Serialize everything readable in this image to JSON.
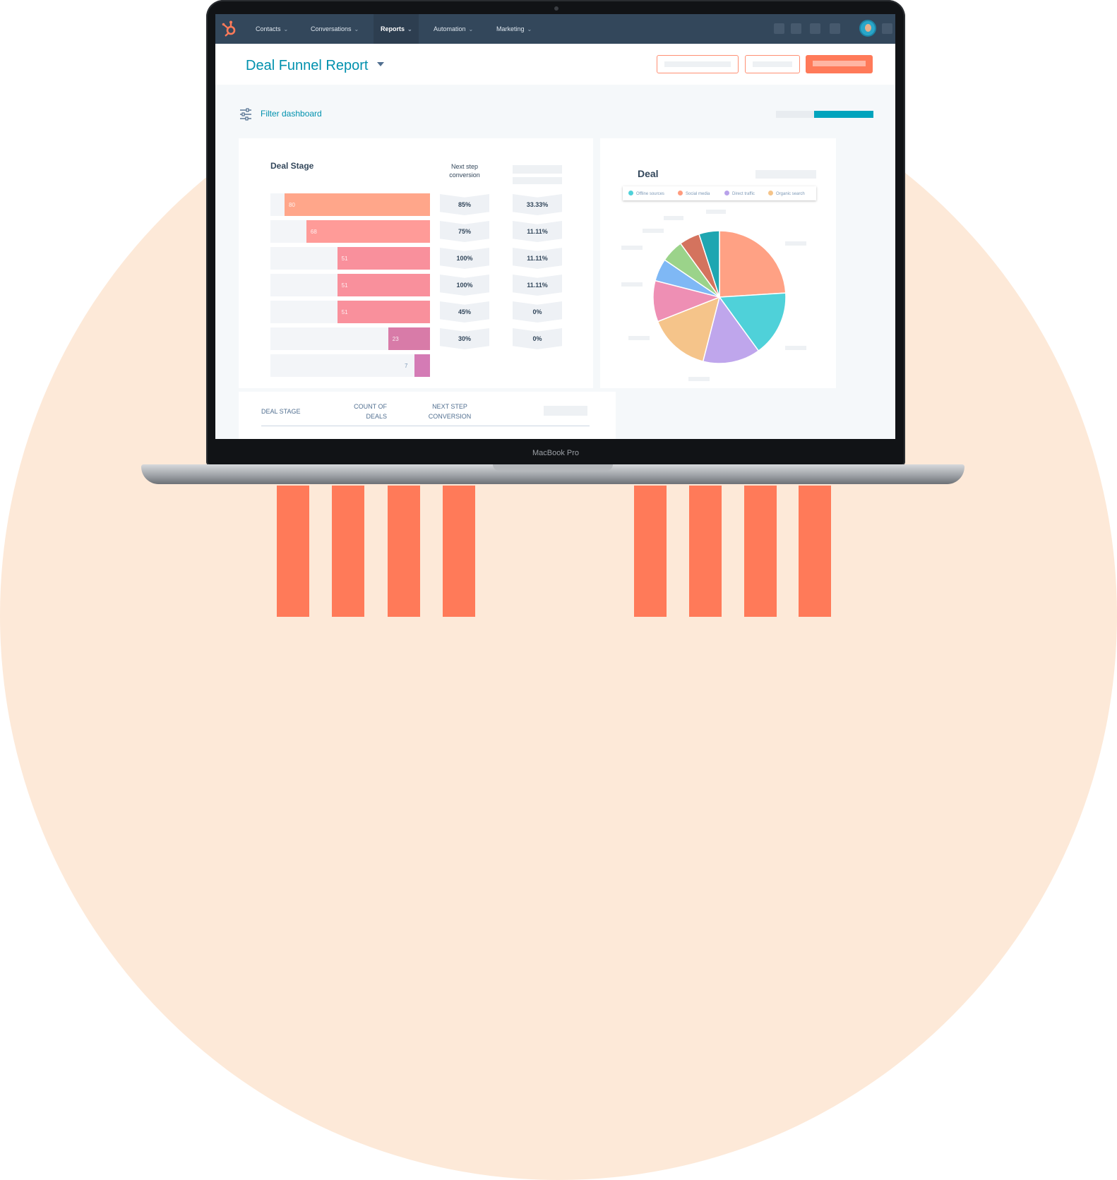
{
  "app": {
    "nav": [
      {
        "label": "Contacts",
        "active": false
      },
      {
        "label": "Conversations",
        "active": false
      },
      {
        "label": "Reports",
        "active": true
      },
      {
        "label": "Automation",
        "active": false
      },
      {
        "label": "Marketing",
        "active": false
      }
    ],
    "logo_icon": "hubspot-sprocket-icon",
    "accent": "#ff7a59",
    "nav_bg": "#33475b",
    "link_color": "#0091ae"
  },
  "header": {
    "title": "Deal Funnel Report"
  },
  "filter": {
    "label": "Filter dashboard"
  },
  "funnel": {
    "title": "Deal Stage",
    "next_step_header": "Next step conversion",
    "next_step_header_lines": [
      "Next step",
      "conversion"
    ]
  },
  "pie": {
    "title": "Deal"
  },
  "table": {
    "col1": "DEAL STAGE",
    "col2_lines": [
      "COUNT OF",
      "DEALS"
    ],
    "col3_lines": [
      "NEXT STEP",
      "CONVERSION"
    ]
  },
  "device": {
    "model": "MacBook Pro"
  },
  "chart_data": [
    {
      "type": "bar",
      "title": "Deal Stage",
      "orientation": "horizontal-funnel",
      "values": [
        80,
        68,
        51,
        51,
        51,
        23,
        7
      ],
      "xlim": [
        0,
        80
      ],
      "next_step_conversion": [
        "85%",
        "75%",
        "100%",
        "100%",
        "45%",
        "30%"
      ],
      "second_column": [
        "33.33%",
        "11.11%",
        "11.11%",
        "11.11%",
        "0%",
        "0%"
      ],
      "colors": [
        "#ffa68a",
        "#ff9b98",
        "#f9909c",
        "#f9909c",
        "#f9909c",
        "#d87ba8",
        "#d47bb5"
      ]
    },
    {
      "type": "pie",
      "title": "Deal",
      "legend": [
        "Offline sources",
        "Social media",
        "Direct traffic",
        "Organic search"
      ],
      "legend_colors": [
        "#4fd1d9",
        "#ff9b7e",
        "#b8a2ea",
        "#f5c48a"
      ],
      "slices": [
        {
          "value": 24,
          "color": "#ffa184"
        },
        {
          "value": 16,
          "color": "#4fd1d9"
        },
        {
          "value": 14,
          "color": "#bfa6ec"
        },
        {
          "value": 15,
          "color": "#f5c48a"
        },
        {
          "value": 10,
          "color": "#ee8fb4"
        },
        {
          "value": 5.5,
          "color": "#7fb8f5"
        },
        {
          "value": 5.5,
          "color": "#9bd38a"
        },
        {
          "value": 5,
          "color": "#d4735e"
        },
        {
          "value": 5,
          "color": "#1ea6b1"
        }
      ],
      "legend_placement": "top"
    }
  ]
}
